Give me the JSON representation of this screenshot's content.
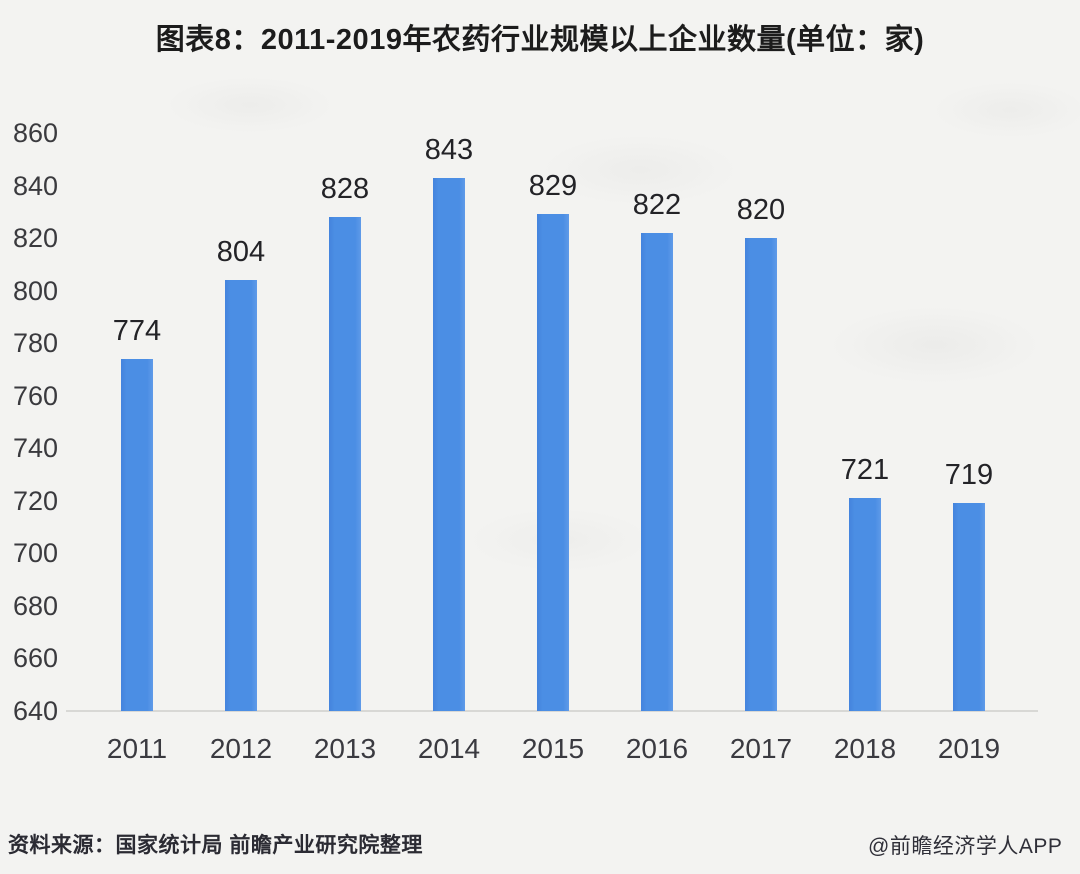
{
  "page": {
    "title": "图表8：2011-2019年农药行业规模以上企业数量(单位：家)",
    "source_note": "资料来源：国家统计局 前瞻产业研究院整理",
    "credit": "@前瞻经济学人APP"
  },
  "chart_data": {
    "type": "bar",
    "title": "图表8：2011-2019年农药行业规模以上企业数量(单位：家)",
    "unit": "家",
    "categories": [
      "2011",
      "2012",
      "2013",
      "2014",
      "2015",
      "2016",
      "2017",
      "2018",
      "2019"
    ],
    "values": [
      774,
      804,
      828,
      843,
      829,
      822,
      820,
      721,
      719
    ],
    "xlabel": "",
    "ylabel": "",
    "ylim": [
      640,
      860
    ],
    "yticks": [
      640,
      660,
      680,
      700,
      720,
      740,
      760,
      780,
      800,
      820,
      840,
      860
    ],
    "grid": false,
    "legend_position": "none",
    "data_labels": true,
    "bar_color": "#4b8ee4",
    "background_color": "#f3f3f1",
    "axis_line_color": "#d8d8d5"
  }
}
